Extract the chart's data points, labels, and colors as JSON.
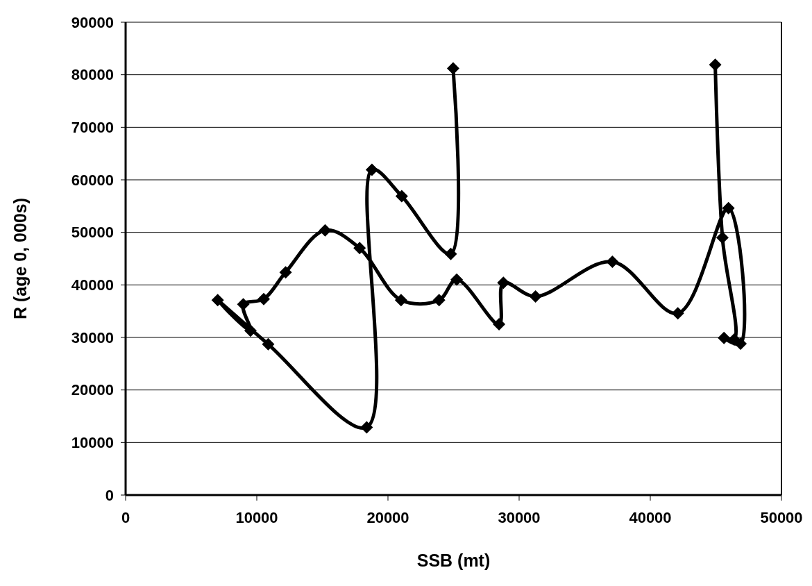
{
  "chart_data": {
    "type": "line",
    "xlabel": "SSB (mt)",
    "ylabel": "R (age 0, 000s)",
    "xlim": [
      0,
      50000
    ],
    "xticks": [
      0,
      10000,
      20000,
      30000,
      40000,
      50000
    ],
    "ylim": [
      0,
      90000
    ],
    "yticks": [
      0,
      10000,
      20000,
      30000,
      40000,
      50000,
      60000,
      70000,
      80000,
      90000
    ],
    "grid": "y",
    "marker": "diamond",
    "line_style": "solid",
    "series": [
      {
        "color": "#000000",
        "x": [
          44950,
          45500,
          46400,
          45620,
          46880,
          45960,
          42100,
          37110,
          31250,
          28800,
          28470,
          25240,
          23900,
          21000,
          17840,
          15210,
          12200,
          10530,
          8970,
          9520,
          7020,
          10870,
          18380,
          18780,
          21050,
          24790,
          24970
        ],
        "values": [
          81900,
          49000,
          29600,
          29900,
          28800,
          54600,
          34600,
          44400,
          37800,
          40400,
          32500,
          41000,
          37100,
          37100,
          47000,
          50400,
          42400,
          37300,
          36300,
          31300,
          37100,
          28700,
          12900,
          61900,
          56900,
          45900,
          81200
        ]
      }
    ]
  }
}
